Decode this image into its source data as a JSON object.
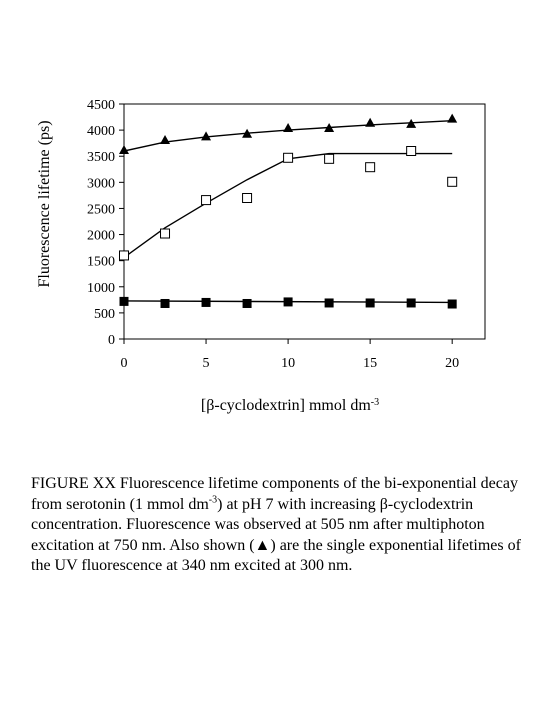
{
  "chart_data": {
    "type": "scatter",
    "title": "",
    "ylabel": "Fluorescence lifetime (ps)",
    "xlabel_parts": [
      "[",
      "β",
      "-cyclodextrin] mmol dm",
      "-3"
    ],
    "xlim": [
      0,
      22
    ],
    "ylim": [
      0,
      4500
    ],
    "x_ticks": [
      0,
      5,
      10,
      15,
      20
    ],
    "y_ticks": [
      0,
      500,
      1000,
      1500,
      2000,
      2500,
      3000,
      3500,
      4000,
      4500
    ],
    "grid": false,
    "legend": "none",
    "series": [
      {
        "marker": "triangle-filled",
        "color": "#000000",
        "x": [
          0,
          2.5,
          5,
          7.5,
          10,
          12.5,
          15,
          17.5,
          20
        ],
        "y": [
          3620,
          3810,
          3880,
          3930,
          4040,
          4040,
          4140,
          4120,
          4220
        ],
        "fit": [
          [
            0,
            3600
          ],
          [
            2.5,
            3770
          ],
          [
            5,
            3870
          ],
          [
            7.5,
            3940
          ],
          [
            10,
            4000
          ],
          [
            12.5,
            4050
          ],
          [
            15,
            4100
          ],
          [
            17.5,
            4140
          ],
          [
            20,
            4180
          ]
        ]
      },
      {
        "marker": "square-open",
        "color": "#000000",
        "x": [
          0,
          2.5,
          5,
          7.5,
          10,
          12.5,
          15,
          17.5,
          20
        ],
        "y": [
          1600,
          2020,
          2660,
          2700,
          3470,
          3450,
          3290,
          3600,
          3010
        ],
        "fit": [
          [
            0,
            1560
          ],
          [
            2.5,
            2130
          ],
          [
            5,
            2600
          ],
          [
            7.5,
            3050
          ],
          [
            10,
            3450
          ],
          [
            12.5,
            3550
          ],
          [
            15,
            3550
          ],
          [
            17.5,
            3550
          ],
          [
            20,
            3550
          ]
        ]
      },
      {
        "marker": "square-filled",
        "color": "#000000",
        "x": [
          0,
          2.5,
          5,
          7.5,
          10,
          12.5,
          15,
          17.5,
          20
        ],
        "y": [
          720,
          680,
          700,
          680,
          710,
          690,
          690,
          690,
          670
        ],
        "fit": [
          [
            0,
            730
          ],
          [
            20,
            700
          ]
        ]
      }
    ]
  },
  "caption": {
    "p1": "FIGURE XX   Fluorescence lifetime components of the bi-exponential decay from serotonin (1 mmol dm",
    "sup1": "-3",
    "p2": ") at pH 7 with increasing ",
    "beta": "β",
    "p3": "-cyclodextrin concentration. Fluorescence was observed at 505 nm after multiphoton excitation at 750 nm. Also shown (",
    "symbol": "▲",
    "p4": ") are the single exponential lifetimes of the UV fluorescence at 340 nm excited at 300 nm."
  }
}
